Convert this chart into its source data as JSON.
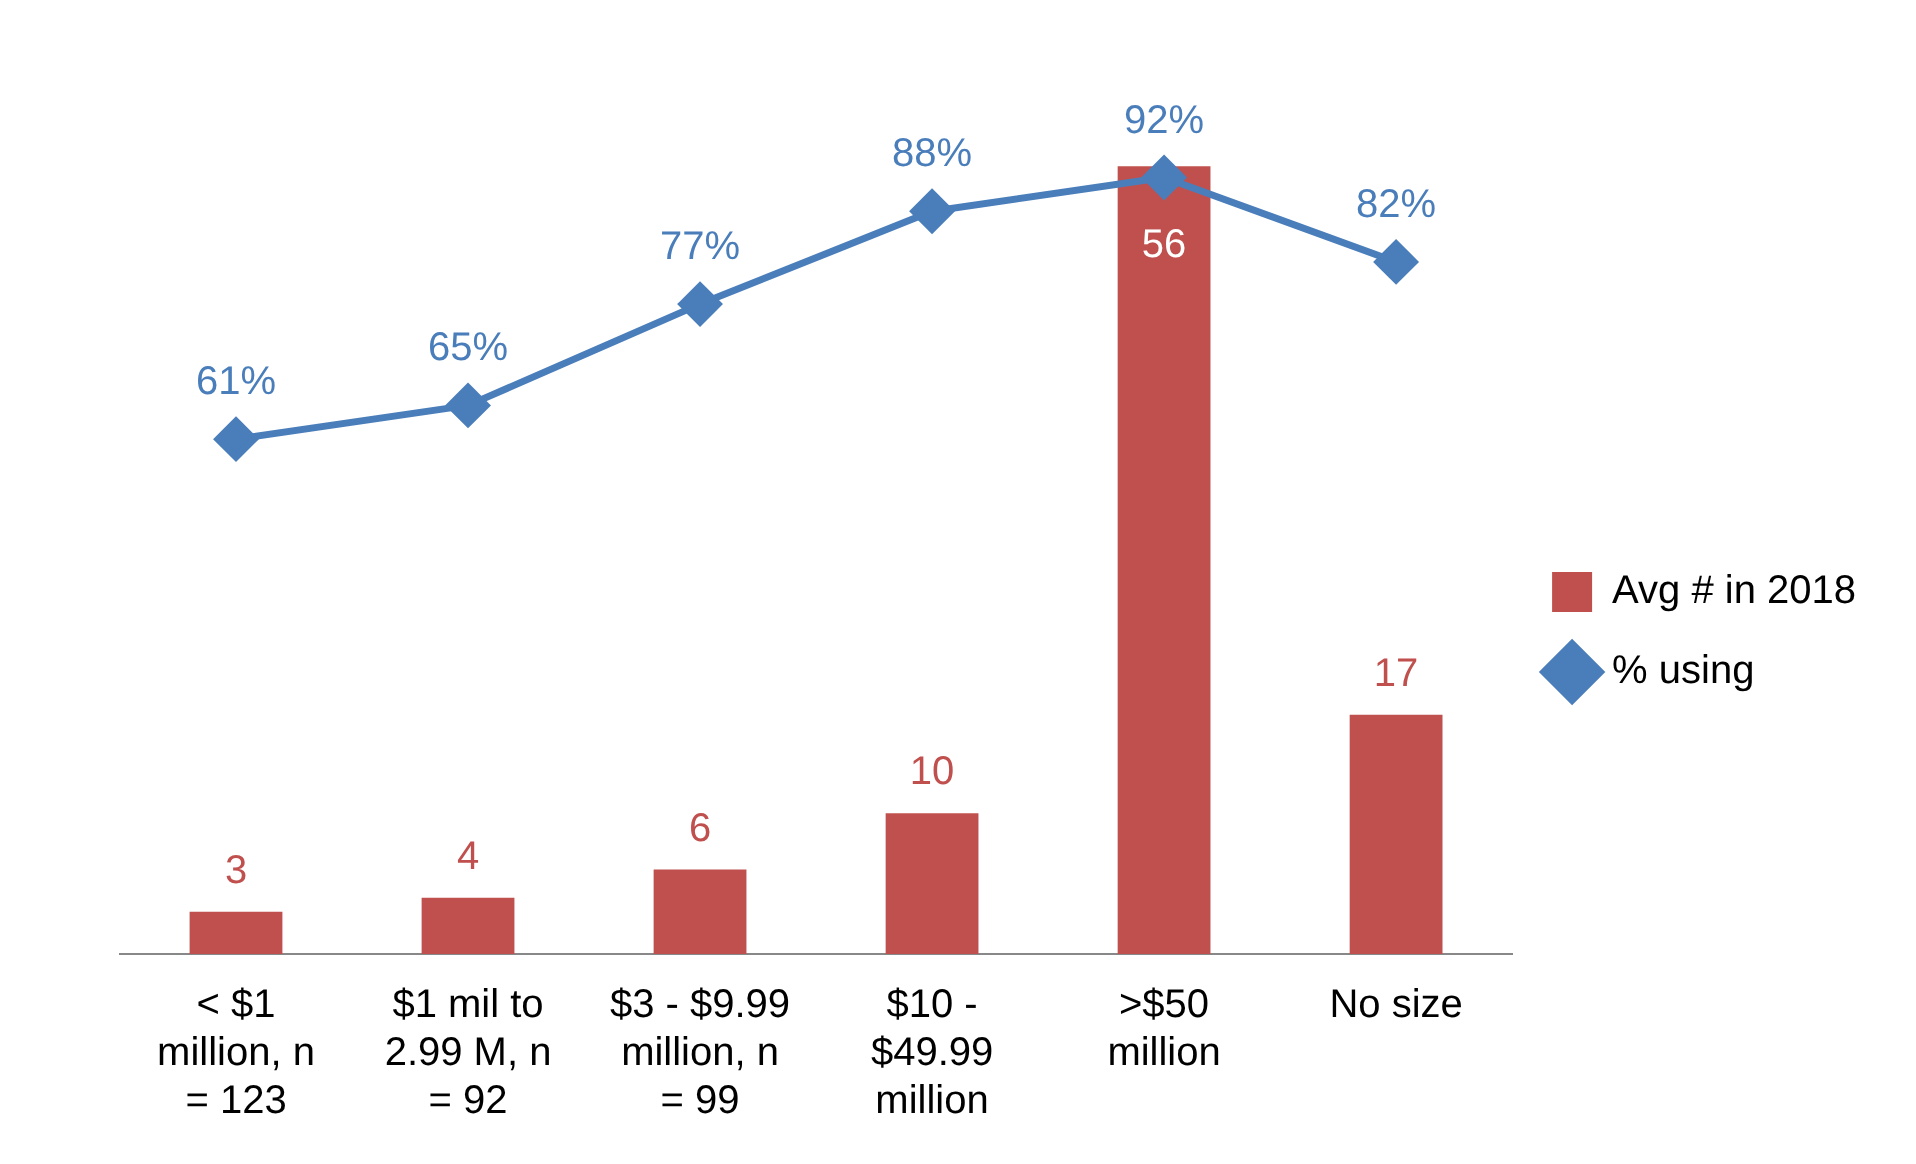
{
  "chart_data": {
    "type": "bar",
    "categories": [
      "< $1 million, n = 123",
      "$1 mil to 2.99 M, n = 92",
      "$3 - $9.99 million, n = 99",
      "$10 - $49.99 million",
      ">$50 million",
      "No size"
    ],
    "series": [
      {
        "name": "Avg # in 2018",
        "color": "#c0504d",
        "values": [
          3,
          4,
          6,
          10,
          56,
          17
        ],
        "value_labels": [
          "3",
          "4",
          "6",
          "10",
          "56",
          "17"
        ]
      },
      {
        "name": "% using",
        "type": "line",
        "axis": "y2",
        "color": "#4a7ebb",
        "marker": "diamond",
        "values": [
          61,
          65,
          77,
          88,
          92,
          82
        ],
        "value_labels": [
          "61%",
          "65%",
          "77%",
          "88%",
          "92%",
          "82%"
        ]
      }
    ],
    "tick_labels": "x",
    "grid": false,
    "legend": "right"
  }
}
